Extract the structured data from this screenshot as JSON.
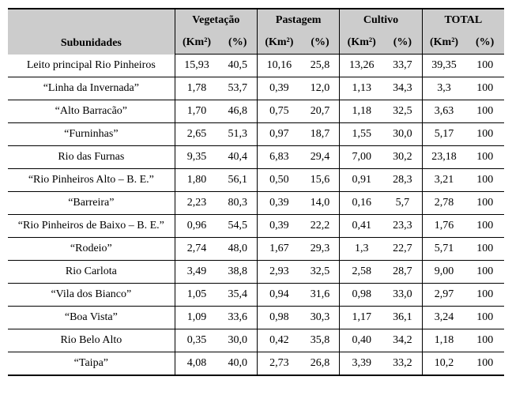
{
  "table": {
    "header": {
      "subunidades": "Subunidades",
      "vegetacao": "Vegetação",
      "pastagem": "Pastagem",
      "cultivo": "Cultivo",
      "total": "TOTAL",
      "km2": "(Km²)",
      "pct": "(%)"
    },
    "rows": [
      {
        "name": "Leito principal Rio Pinheiros",
        "veg_km": "15,93",
        "veg_pct": "40,5",
        "pas_km": "10,16",
        "pas_pct": "25,8",
        "cul_km": "13,26",
        "cul_pct": "33,7",
        "tot_km": "39,35",
        "tot_pct": "100"
      },
      {
        "name": "“Linha da Invernada”",
        "veg_km": "1,78",
        "veg_pct": "53,7",
        "pas_km": "0,39",
        "pas_pct": "12,0",
        "cul_km": "1,13",
        "cul_pct": "34,3",
        "tot_km": "3,3",
        "tot_pct": "100"
      },
      {
        "name": "“Alto Barracão”",
        "veg_km": "1,70",
        "veg_pct": "46,8",
        "pas_km": "0,75",
        "pas_pct": "20,7",
        "cul_km": "1,18",
        "cul_pct": "32,5",
        "tot_km": "3,63",
        "tot_pct": "100"
      },
      {
        "name": "“Furninhas”",
        "veg_km": "2,65",
        "veg_pct": "51,3",
        "pas_km": "0,97",
        "pas_pct": "18,7",
        "cul_km": "1,55",
        "cul_pct": "30,0",
        "tot_km": "5,17",
        "tot_pct": "100"
      },
      {
        "name": "Rio das Furnas",
        "veg_km": "9,35",
        "veg_pct": "40,4",
        "pas_km": "6,83",
        "pas_pct": "29,4",
        "cul_km": "7,00",
        "cul_pct": "30,2",
        "tot_km": "23,18",
        "tot_pct": "100"
      },
      {
        "name": "“Rio Pinheiros Alto – B. E.”",
        "veg_km": "1,80",
        "veg_pct": "56,1",
        "pas_km": "0,50",
        "pas_pct": "15,6",
        "cul_km": "0,91",
        "cul_pct": "28,3",
        "tot_km": "3,21",
        "tot_pct": "100"
      },
      {
        "name": "“Barreira”",
        "veg_km": "2,23",
        "veg_pct": "80,3",
        "pas_km": "0,39",
        "pas_pct": "14,0",
        "cul_km": "0,16",
        "cul_pct": "5,7",
        "tot_km": "2,78",
        "tot_pct": "100"
      },
      {
        "name": "“Rio Pinheiros de Baixo – B. E.”",
        "veg_km": "0,96",
        "veg_pct": "54,5",
        "pas_km": "0,39",
        "pas_pct": "22,2",
        "cul_km": "0,41",
        "cul_pct": "23,3",
        "tot_km": "1,76",
        "tot_pct": "100"
      },
      {
        "name": "“Rodeio”",
        "veg_km": "2,74",
        "veg_pct": "48,0",
        "pas_km": "1,67",
        "pas_pct": "29,3",
        "cul_km": "1,3",
        "cul_pct": "22,7",
        "tot_km": "5,71",
        "tot_pct": "100"
      },
      {
        "name": "Rio Carlota",
        "veg_km": "3,49",
        "veg_pct": "38,8",
        "pas_km": "2,93",
        "pas_pct": "32,5",
        "cul_km": "2,58",
        "cul_pct": "28,7",
        "tot_km": "9,00",
        "tot_pct": "100"
      },
      {
        "name": "“Vila dos Bianco”",
        "veg_km": "1,05",
        "veg_pct": "35,4",
        "pas_km": "0,94",
        "pas_pct": "31,6",
        "cul_km": "0,98",
        "cul_pct": "33,0",
        "tot_km": "2,97",
        "tot_pct": "100"
      },
      {
        "name": "“Boa Vista”",
        "veg_km": "1,09",
        "veg_pct": "33,6",
        "pas_km": "0,98",
        "pas_pct": "30,3",
        "cul_km": "1,17",
        "cul_pct": "36,1",
        "tot_km": "3,24",
        "tot_pct": "100"
      },
      {
        "name": "Rio Belo Alto",
        "veg_km": "0,35",
        "veg_pct": "30,0",
        "pas_km": "0,42",
        "pas_pct": "35,8",
        "cul_km": "0,40",
        "cul_pct": "34,2",
        "tot_km": "1,18",
        "tot_pct": "100"
      },
      {
        "name": "“Taipa”",
        "veg_km": "4,08",
        "veg_pct": "40,0",
        "pas_km": "2,73",
        "pas_pct": "26,8",
        "cul_km": "3,39",
        "cul_pct": "33,2",
        "tot_km": "10,2",
        "tot_pct": "100"
      }
    ]
  }
}
